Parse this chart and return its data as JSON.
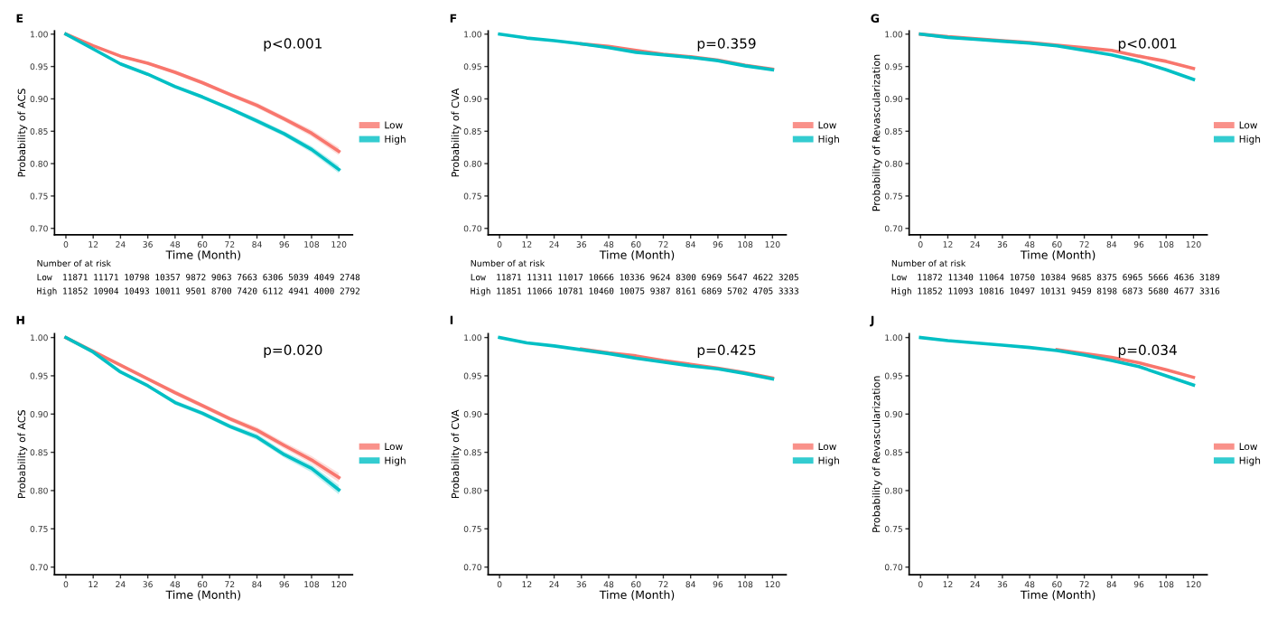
{
  "chart_data": [
    {
      "type": "line",
      "title": "E",
      "xlabel": "Time (Month)",
      "ylabel": "Probability of ACS",
      "x": [
        0,
        12,
        24,
        36,
        48,
        60,
        72,
        84,
        96,
        108,
        120
      ],
      "xlim": [
        -5,
        126
      ],
      "ylim": [
        0.69,
        1.005
      ],
      "xticks": [
        0,
        12,
        24,
        36,
        48,
        60,
        72,
        84,
        96,
        108,
        120
      ],
      "yticks": [
        {
          "value": 0.7,
          "label": "0.70"
        },
        {
          "value": 0.75,
          "label": "0.75"
        },
        {
          "value": 0.8,
          "label": "0.80"
        },
        {
          "value": 0.85,
          "label": "0.85"
        },
        {
          "value": 0.9,
          "label": "0.90"
        },
        {
          "value": 0.95,
          "label": "0.95"
        },
        {
          "value": 1.0,
          "label": "1.00"
        }
      ],
      "legend": "right",
      "grid": false,
      "series": [
        {
          "name": "Low",
          "color": "#f8766d",
          "values": [
            1.0,
            0.982,
            0.966,
            0.955,
            0.941,
            0.925,
            0.907,
            0.89,
            0.869,
            0.847,
            0.819
          ],
          "lower": [
            1.0,
            0.981,
            0.964,
            0.953,
            0.938,
            0.922,
            0.904,
            0.886,
            0.865,
            0.842,
            0.813
          ],
          "upper": [
            1.0,
            0.983,
            0.968,
            0.957,
            0.944,
            0.928,
            0.91,
            0.894,
            0.873,
            0.852,
            0.825
          ]
        },
        {
          "name": "High",
          "color": "#00bfc4",
          "values": [
            1.0,
            0.977,
            0.954,
            0.938,
            0.919,
            0.903,
            0.885,
            0.866,
            0.846,
            0.822,
            0.791
          ],
          "lower": [
            1.0,
            0.976,
            0.952,
            0.936,
            0.916,
            0.9,
            0.882,
            0.862,
            0.842,
            0.817,
            0.785
          ],
          "upper": [
            1.0,
            0.978,
            0.956,
            0.94,
            0.922,
            0.906,
            0.888,
            0.87,
            0.85,
            0.827,
            0.797
          ]
        }
      ],
      "annotations": [
        "p<0.001",
        "Number of at risk",
        "Low  11871 11171 10798 10357 9872 9063 7663 6306 5039 4049 2748",
        "High 11852 10904 10493 10011 9501 8700 7420 6112 4941 4000 2792"
      ]
    },
    {
      "type": "line",
      "title": "F",
      "xlabel": "Time (Month)",
      "ylabel": "Probability of CVA",
      "x": [
        0,
        12,
        24,
        36,
        48,
        60,
        72,
        84,
        96,
        108,
        120
      ],
      "xlim": [
        -5,
        126
      ],
      "ylim": [
        0.69,
        1.005
      ],
      "xticks": [
        0,
        12,
        24,
        36,
        48,
        60,
        72,
        84,
        96,
        108,
        120
      ],
      "yticks": [
        {
          "value": 0.7,
          "label": "0.70"
        },
        {
          "value": 0.75,
          "label": "0.75"
        },
        {
          "value": 0.8,
          "label": "0.80"
        },
        {
          "value": 0.85,
          "label": "0.85"
        },
        {
          "value": 0.9,
          "label": "0.90"
        },
        {
          "value": 0.95,
          "label": "0.95"
        },
        {
          "value": 1.0,
          "label": "1.00"
        }
      ],
      "legend": "right",
      "grid": false,
      "series": [
        {
          "name": "Low",
          "color": "#f8766d",
          "values": [
            null,
            null,
            null,
            0.985,
            0.981,
            0.975,
            0.969,
            0.965,
            0.96,
            0.952,
            0.946
          ]
        },
        {
          "name": "High",
          "color": "#00bfc4",
          "values": [
            1.0,
            0.994,
            0.99,
            0.985,
            0.979,
            0.972,
            0.968,
            0.964,
            0.959,
            0.951,
            0.945
          ]
        }
      ],
      "annotations": [
        "p=0.359",
        "Number of at risk",
        "Low  11871 11311 11017 10666 10336 9624 8300 6969 5647 4622 3205",
        "High 11851 11066 10781 10460 10075 9387 8161 6869 5702 4705 3333"
      ]
    },
    {
      "type": "line",
      "title": "G",
      "xlabel": "Time (Month)",
      "ylabel": "Probability of Revascularization",
      "x": [
        0,
        12,
        24,
        36,
        48,
        60,
        72,
        84,
        96,
        108,
        120
      ],
      "xlim": [
        -5,
        126
      ],
      "ylim": [
        0.69,
        1.005
      ],
      "xticks": [
        0,
        12,
        24,
        36,
        48,
        60,
        72,
        84,
        96,
        108,
        120
      ],
      "yticks": [
        {
          "value": 0.7,
          "label": "0.70"
        },
        {
          "value": 0.75,
          "label": "0.75"
        },
        {
          "value": 0.8,
          "label": "0.80"
        },
        {
          "value": 0.85,
          "label": "0.85"
        },
        {
          "value": 0.9,
          "label": "0.90"
        },
        {
          "value": 0.95,
          "label": "0.95"
        },
        {
          "value": 1.0,
          "label": "1.00"
        }
      ],
      "legend": "right",
      "grid": false,
      "series": [
        {
          "name": "Low",
          "color": "#f8766d",
          "values": [
            1.0,
            0.996,
            0.993,
            0.99,
            0.987,
            0.983,
            0.979,
            0.975,
            0.966,
            0.958,
            0.947
          ]
        },
        {
          "name": "High",
          "color": "#00bfc4",
          "values": [
            1.0,
            0.995,
            0.992,
            0.989,
            0.986,
            0.982,
            0.975,
            0.968,
            0.958,
            0.945,
            0.93
          ]
        }
      ],
      "annotations": [
        "p<0.001",
        "Number of at risk",
        "Low  11872 11340 11064 10750 10384 9685 8375 6965 5666 4636 3189",
        "High 11852 11093 10816 10497 10131 9459 8198 6873 5680 4677 3316"
      ]
    },
    {
      "type": "line",
      "title": "H",
      "xlabel": "Time (Month)",
      "ylabel": "Probability of ACS",
      "x": [
        0,
        12,
        24,
        36,
        48,
        60,
        72,
        84,
        96,
        108,
        120
      ],
      "xlim": [
        -5,
        126
      ],
      "ylim": [
        0.69,
        1.005
      ],
      "xticks": [
        0,
        12,
        24,
        36,
        48,
        60,
        72,
        84,
        96,
        108,
        120
      ],
      "yticks": [
        {
          "value": 0.7,
          "label": "0.70"
        },
        {
          "value": 0.75,
          "label": "0.75"
        },
        {
          "value": 0.8,
          "label": "0.80"
        },
        {
          "value": 0.85,
          "label": "0.85"
        },
        {
          "value": 0.9,
          "label": "0.90"
        },
        {
          "value": 0.95,
          "label": "0.95"
        },
        {
          "value": 1.0,
          "label": "1.00"
        }
      ],
      "legend": "right",
      "grid": false,
      "series": [
        {
          "name": "Low",
          "color": "#f8766d",
          "values": [
            1.0,
            0.982,
            0.964,
            0.946,
            0.928,
            0.911,
            0.894,
            0.879,
            0.859,
            0.84,
            0.817
          ],
          "lower": [
            1.0,
            0.981,
            0.962,
            0.944,
            0.925,
            0.908,
            0.891,
            0.875,
            0.855,
            0.835,
            0.811
          ],
          "upper": [
            1.0,
            0.983,
            0.966,
            0.948,
            0.931,
            0.914,
            0.897,
            0.883,
            0.863,
            0.845,
            0.823
          ]
        },
        {
          "name": "High",
          "color": "#00bfc4",
          "values": [
            1.0,
            0.981,
            0.955,
            0.937,
            0.915,
            0.901,
            0.884,
            0.87,
            0.847,
            0.829,
            0.801
          ],
          "lower": [
            1.0,
            0.98,
            0.953,
            0.935,
            0.912,
            0.898,
            0.881,
            0.866,
            0.843,
            0.824,
            0.795
          ],
          "upper": [
            1.0,
            0.982,
            0.957,
            0.939,
            0.918,
            0.904,
            0.887,
            0.874,
            0.851,
            0.834,
            0.807
          ]
        }
      ],
      "annotations": [
        "p=0.020"
      ]
    },
    {
      "type": "line",
      "title": "I",
      "xlabel": "Time (Month)",
      "ylabel": "Probability of CVA",
      "x": [
        0,
        12,
        24,
        36,
        48,
        60,
        72,
        84,
        96,
        108,
        120
      ],
      "xlim": [
        -5,
        126
      ],
      "ylim": [
        0.69,
        1.005
      ],
      "xticks": [
        0,
        12,
        24,
        36,
        48,
        60,
        72,
        84,
        96,
        108,
        120
      ],
      "yticks": [
        {
          "value": 0.7,
          "label": "0.70"
        },
        {
          "value": 0.75,
          "label": "0.75"
        },
        {
          "value": 0.8,
          "label": "0.80"
        },
        {
          "value": 0.85,
          "label": "0.85"
        },
        {
          "value": 0.9,
          "label": "0.90"
        },
        {
          "value": 0.95,
          "label": "0.95"
        },
        {
          "value": 1.0,
          "label": "1.00"
        }
      ],
      "legend": "right",
      "grid": false,
      "series": [
        {
          "name": "Low",
          "color": "#f8766d",
          "values": [
            null,
            null,
            null,
            0.985,
            0.98,
            0.976,
            0.97,
            0.965,
            0.96,
            0.954,
            0.947
          ]
        },
        {
          "name": "High",
          "color": "#00bfc4",
          "values": [
            1.0,
            0.993,
            0.989,
            0.984,
            0.979,
            0.973,
            0.968,
            0.963,
            0.959,
            0.953,
            0.946
          ]
        }
      ],
      "annotations": [
        "p=0.425"
      ]
    },
    {
      "type": "line",
      "title": "J",
      "xlabel": "Time (Month)",
      "ylabel": "Probability of Revascularization",
      "x": [
        0,
        12,
        24,
        36,
        48,
        60,
        72,
        84,
        96,
        108,
        120
      ],
      "xlim": [
        -5,
        126
      ],
      "ylim": [
        0.69,
        1.005
      ],
      "xticks": [
        0,
        12,
        24,
        36,
        48,
        60,
        72,
        84,
        96,
        108,
        120
      ],
      "yticks": [
        {
          "value": 0.7,
          "label": "0.70"
        },
        {
          "value": 0.75,
          "label": "0.75"
        },
        {
          "value": 0.8,
          "label": "0.80"
        },
        {
          "value": 0.85,
          "label": "0.85"
        },
        {
          "value": 0.9,
          "label": "0.90"
        },
        {
          "value": 0.95,
          "label": "0.95"
        },
        {
          "value": 1.0,
          "label": "1.00"
        }
      ],
      "legend": "right",
      "grid": false,
      "series": [
        {
          "name": "Low",
          "color": "#f8766d",
          "values": [
            null,
            null,
            null,
            null,
            null,
            0.984,
            0.979,
            0.974,
            0.967,
            0.958,
            0.948
          ]
        },
        {
          "name": "High",
          "color": "#00bfc4",
          "values": [
            1.0,
            0.996,
            0.993,
            0.99,
            0.987,
            0.983,
            0.977,
            0.97,
            0.962,
            0.95,
            0.938
          ]
        }
      ],
      "annotations": [
        "p=0.034"
      ]
    }
  ]
}
